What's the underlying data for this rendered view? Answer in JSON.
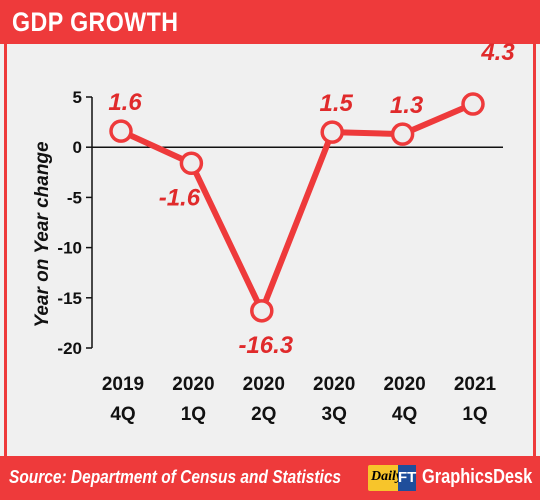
{
  "header": {
    "title": "GDP GROWTH"
  },
  "footer": {
    "source": "Source: Department of Census and Statistics",
    "brand_daily": "Daily",
    "brand_ft": "FT",
    "brand_desk": "GraphicsDesk"
  },
  "colors": {
    "accent": "#ee3a3b",
    "line": "#ee3a3b",
    "marker_fill": "#eeeeee"
  },
  "chart_data": {
    "type": "line",
    "title": "GDP GROWTH",
    "ylabel": "Year on Year change",
    "xlabel": "",
    "categories": [
      "2019 4Q",
      "2020 1Q",
      "2020 2Q",
      "2020 3Q",
      "2020 4Q",
      "2021 1Q"
    ],
    "category_lines": [
      [
        "2019",
        "4Q"
      ],
      [
        "2020",
        "1Q"
      ],
      [
        "2020",
        "2Q"
      ],
      [
        "2020",
        "3Q"
      ],
      [
        "2020",
        "4Q"
      ],
      [
        "2021",
        "1Q"
      ]
    ],
    "values": [
      1.6,
      -1.6,
      -16.3,
      1.5,
      1.3,
      4.3
    ],
    "data_labels": [
      "1.6",
      "-1.6",
      "-16.3",
      "1.5",
      "1.3",
      "4.3"
    ],
    "label_position": [
      "above",
      "below",
      "below",
      "above",
      "above",
      "above"
    ],
    "yticks": [
      5,
      0,
      -5,
      -10,
      -15,
      -20
    ],
    "ylim": [
      -20,
      5
    ],
    "zero_line": true,
    "grid": false
  }
}
